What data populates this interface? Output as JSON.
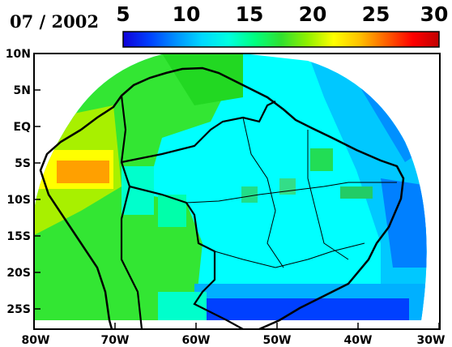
{
  "title": "07 / 2002",
  "colorbar": {
    "min": 5,
    "max": 30,
    "tick_labels": [
      "5",
      "10",
      "15",
      "20",
      "25",
      "30"
    ],
    "colors": [
      "#1000d8",
      "#0040ff",
      "#0090ff",
      "#00d8ff",
      "#00ffe0",
      "#00ff80",
      "#30e030",
      "#90f000",
      "#ffff00",
      "#ffc000",
      "#ff6000",
      "#ff0000",
      "#c00000"
    ]
  },
  "map": {
    "y_axis_labels": [
      "10N",
      "5N",
      "EQ",
      "5S",
      "10S",
      "15S",
      "20S",
      "25S"
    ],
    "x_axis_labels": [
      "80W",
      "70W",
      "60W",
      "50W",
      "40W",
      "30W"
    ]
  }
}
